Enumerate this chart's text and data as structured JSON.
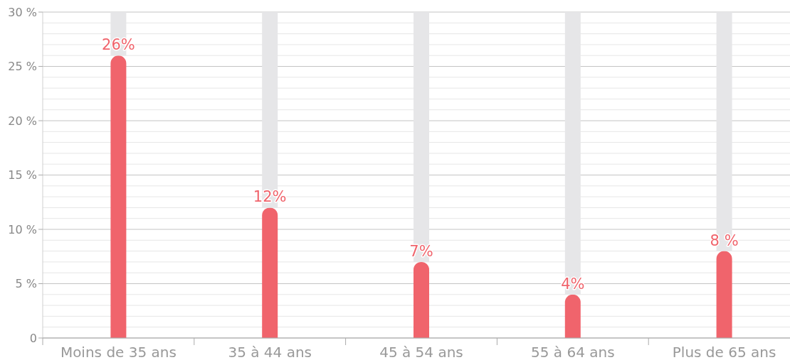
{
  "chart_data": {
    "type": "bar",
    "stacked": true,
    "categories": [
      "Moins de 35 ans",
      "35 à 44 ans",
      "45 à 54 ans",
      "55 à 64 ans",
      "Plus de 65 ans"
    ],
    "series": [
      {
        "color": "#f0646c",
        "values": [
          26,
          12,
          7,
          4,
          8
        ],
        "value_labels": [
          "26%",
          "12%",
          "7%",
          "4%",
          "8 %"
        ]
      },
      {
        "color": "#e6e6e8",
        "values": [
          4,
          18,
          23,
          26,
          22
        ]
      }
    ],
    "ylim": [
      0,
      30
    ],
    "yticks": [
      {
        "value": 0,
        "label": "0"
      },
      {
        "value": 1,
        "label": null
      },
      {
        "value": 2,
        "label": null
      },
      {
        "value": 3,
        "label": null
      },
      {
        "value": 4,
        "label": null
      },
      {
        "value": 5,
        "label": "5 %"
      },
      {
        "value": 6,
        "label": null
      },
      {
        "value": 7,
        "label": null
      },
      {
        "value": 8,
        "label": null
      },
      {
        "value": 9,
        "label": null
      },
      {
        "value": 10,
        "label": "10 %"
      },
      {
        "value": 11,
        "label": null
      },
      {
        "value": 12,
        "label": null
      },
      {
        "value": 13,
        "label": null
      },
      {
        "value": 14,
        "label": null
      },
      {
        "value": 15,
        "label": "15 %"
      },
      {
        "value": 16,
        "label": null
      },
      {
        "value": 17,
        "label": null
      },
      {
        "value": 18,
        "label": null
      },
      {
        "value": 19,
        "label": null
      },
      {
        "value": 20,
        "label": "20 %"
      },
      {
        "value": 21,
        "label": null
      },
      {
        "value": 22,
        "label": null
      },
      {
        "value": 23,
        "label": null
      },
      {
        "value": 24,
        "label": null
      },
      {
        "value": 25,
        "label": "25 %"
      },
      {
        "value": 26,
        "label": null
      },
      {
        "value": 27,
        "label": null
      },
      {
        "value": 28,
        "label": null
      },
      {
        "value": 29,
        "label": null
      },
      {
        "value": 30,
        "label": "30 %"
      }
    ],
    "grid": "y"
  }
}
